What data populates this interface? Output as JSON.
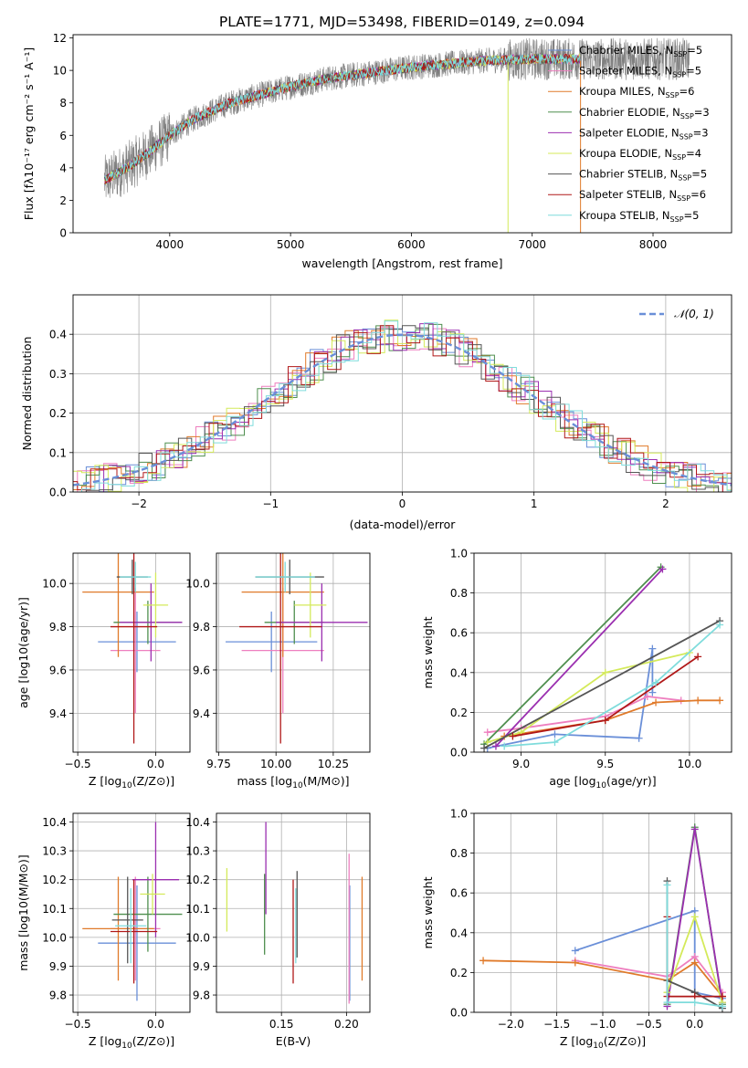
{
  "figure": {
    "title": "PLATE=1771, MJD=53498, FIBERID=0149, z=0.094"
  },
  "chart_data": [
    {
      "id": "spectrum",
      "type": "line",
      "xlabel": "wavelength [Angstrom, rest frame]",
      "ylabel": "Flux [fλ10⁻¹⁷ erg cm⁻² s⁻¹ A⁻¹]",
      "xlim": [
        3200,
        8650
      ],
      "ylim": [
        0,
        12.2
      ],
      "xticks": [
        4000,
        5000,
        6000,
        7000,
        8000
      ],
      "yticks": [
        0,
        2,
        4,
        6,
        8,
        10,
        12
      ],
      "grid": false,
      "legend_position": "top-right",
      "continuum": {
        "x": [
          3460,
          3600,
          3800,
          4000,
          4200,
          4500,
          4800,
          5000,
          5300,
          5600,
          6000,
          6300,
          6600,
          7000,
          7400
        ],
        "y": [
          3.2,
          3.8,
          4.8,
          6.0,
          7.0,
          8.0,
          8.6,
          9.0,
          9.5,
          9.8,
          10.2,
          10.4,
          10.6,
          10.7,
          10.7
        ]
      },
      "series": [
        {
          "name": "Chabrier MILES, N_SSP=5",
          "label_main": "Chabrier MILES, N",
          "label_sub": "SSP",
          "label_tail": "=5",
          "color": "#6a8fd8"
        },
        {
          "name": "Salpeter MILES, N_SSP=5",
          "label_main": "Salpeter MILES, N",
          "label_sub": "SSP",
          "label_tail": "=5",
          "color": "#ee7fbf"
        },
        {
          "name": "Kroupa MILES, N_SSP=6",
          "label_main": "Kroupa MILES, N",
          "label_sub": "SSP",
          "label_tail": "=6",
          "color": "#e07a2a"
        },
        {
          "name": "Chabrier ELODIE, N_SSP=3",
          "label_main": "Chabrier ELODIE, N",
          "label_sub": "SSP",
          "label_tail": "=3",
          "color": "#4f8f4f"
        },
        {
          "name": "Salpeter ELODIE, N_SSP=3",
          "label_main": "Salpeter ELODIE, N",
          "label_sub": "SSP",
          "label_tail": "=3",
          "color": "#9b2fb0"
        },
        {
          "name": "Kroupa ELODIE, N_SSP=4",
          "label_main": "Kroupa ELODIE, N",
          "label_sub": "SSP",
          "label_tail": "=4",
          "color": "#d4ea5a"
        },
        {
          "name": "Chabrier STELIB, N_SSP=5",
          "label_main": "Chabrier STELIB, N",
          "label_sub": "SSP",
          "label_tail": "=5",
          "color": "#555555"
        },
        {
          "name": "Salpeter STELIB, N_SSP=6",
          "label_main": "Salpeter STELIB, N",
          "label_sub": "SSP",
          "label_tail": "=6",
          "color": "#b01818"
        },
        {
          "name": "Kroupa STELIB, N_SSP=5",
          "label_main": "Kroupa STELIB, N",
          "label_sub": "SSP",
          "label_tail": "=5",
          "color": "#7fdcdc"
        }
      ]
    },
    {
      "id": "residuals",
      "type": "histogram",
      "xlabel": "(data-model)/error",
      "ylabel": "Normed distribution",
      "xlim": [
        -2.5,
        2.5
      ],
      "ylim": [
        0,
        0.5
      ],
      "xticks": [
        -2,
        -1,
        0,
        1,
        2
      ],
      "xtick_labels": [
        "−2",
        "−1",
        "0",
        "1",
        "2"
      ],
      "yticks": [
        0,
        0.1,
        0.2,
        0.3,
        0.4
      ],
      "ytick_labels": [
        "0.0",
        "0.1",
        "0.2",
        "0.3",
        "0.4"
      ],
      "grid": true,
      "legend_position": "top-right",
      "legend_label": "𝒩(0, 1)",
      "gaussian": {
        "mu": 0,
        "sigma": 1,
        "color": "#6a8fd8"
      }
    },
    {
      "id": "age_vs_Z",
      "type": "errorbar",
      "xlabel_main": "Z [log",
      "xlabel_sub": "10",
      "xlabel_tail": "(Z/Z⊙)]",
      "ylabel": "age  [log10(age/yr)]",
      "xlim": [
        -0.53,
        0.22
      ],
      "ylim": [
        9.22,
        10.14
      ],
      "xticks": [
        -0.5,
        0.0
      ],
      "xtick_labels": [
        "−0.5",
        "0.0"
      ],
      "yticks": [
        9.4,
        9.6,
        9.8,
        10.0
      ],
      "ytick_labels": [
        "9.4",
        "9.6",
        "9.8",
        "10.0"
      ],
      "grid": true,
      "points": [
        {
          "x": -0.12,
          "xerr": 0.25,
          "y": 9.73,
          "yerr": 0.14,
          "color": "#6a8fd8"
        },
        {
          "x": -0.13,
          "xerr": 0.16,
          "y": 9.69,
          "yerr": 0.29,
          "color": "#ee7fbf"
        },
        {
          "x": -0.24,
          "xerr": 0.23,
          "y": 9.96,
          "yerr": 0.3,
          "color": "#e07a2a"
        },
        {
          "x": -0.05,
          "xerr": 0.22,
          "y": 9.82,
          "yerr": 0.1,
          "color": "#4f8f4f"
        },
        {
          "x": -0.03,
          "xerr": 0.2,
          "y": 9.82,
          "yerr": 0.18,
          "color": "#9b2fb0"
        },
        {
          "x": 0.0,
          "xerr": 0.08,
          "y": 9.9,
          "yerr": 0.15,
          "color": "#d4ea5a"
        },
        {
          "x": -0.15,
          "xerr": 0.1,
          "y": 10.03,
          "yerr": 0.08,
          "color": "#555555"
        },
        {
          "x": -0.14,
          "xerr": 0.15,
          "y": 9.8,
          "yerr": 0.54,
          "color": "#b01818"
        },
        {
          "x": -0.13,
          "xerr": 0.1,
          "y": 10.03,
          "yerr": 0.07,
          "color": "#7fdcdc"
        }
      ]
    },
    {
      "id": "age_vs_mass",
      "type": "errorbar",
      "xlabel_main": "mass [log",
      "xlabel_sub": "10",
      "xlabel_tail": "(M/M⊙)]",
      "ylabel": "",
      "xlim": [
        9.74,
        10.41
      ],
      "ylim": [
        9.22,
        10.14
      ],
      "xticks": [
        9.75,
        10.0,
        10.25
      ],
      "xtick_labels": [
        "9.75",
        "10.00",
        "10.25"
      ],
      "yticks": [
        9.4,
        9.6,
        9.8,
        10.0
      ],
      "ytick_labels": [
        "9.4",
        "9.6",
        "9.8",
        "10.0"
      ],
      "grid": true,
      "points": [
        {
          "x": 9.98,
          "xerr": 0.2,
          "y": 9.73,
          "yerr": 0.14,
          "color": "#6a8fd8"
        },
        {
          "x": 10.03,
          "xerr": 0.18,
          "y": 9.69,
          "yerr": 0.29,
          "color": "#ee7fbf"
        },
        {
          "x": 10.03,
          "xerr": 0.18,
          "y": 9.96,
          "yerr": 0.3,
          "color": "#e07a2a"
        },
        {
          "x": 10.08,
          "xerr": 0.13,
          "y": 9.82,
          "yerr": 0.1,
          "color": "#4f8f4f"
        },
        {
          "x": 10.2,
          "xerr": 0.2,
          "y": 9.82,
          "yerr": 0.18,
          "color": "#9b2fb0"
        },
        {
          "x": 10.15,
          "xerr": 0.07,
          "y": 9.9,
          "yerr": 0.15,
          "color": "#d4ea5a"
        },
        {
          "x": 10.06,
          "xerr": 0.15,
          "y": 10.03,
          "yerr": 0.08,
          "color": "#555555"
        },
        {
          "x": 10.02,
          "xerr": 0.18,
          "y": 9.8,
          "yerr": 0.54,
          "color": "#b01818"
        },
        {
          "x": 10.04,
          "xerr": 0.13,
          "y": 10.03,
          "yerr": 0.07,
          "color": "#7fdcdc"
        }
      ]
    },
    {
      "id": "weight_vs_age",
      "type": "line",
      "xlabel_main": "age  [log",
      "xlabel_sub": "10",
      "xlabel_tail": "(age/yr)]",
      "ylabel": "mass weight",
      "xlim": [
        8.72,
        10.25
      ],
      "ylim": [
        0,
        1.0
      ],
      "xticks": [
        9.0,
        9.5,
        10.0
      ],
      "xtick_labels": [
        "9.0",
        "9.5",
        "10.0"
      ],
      "yticks": [
        0,
        0.2,
        0.4,
        0.6,
        0.8,
        1.0
      ],
      "ytick_labels": [
        "0.0",
        "0.2",
        "0.4",
        "0.6",
        "0.8",
        "1.0"
      ],
      "grid": true,
      "series": [
        {
          "color": "#6a8fd8",
          "x": [
            8.8,
            9.2,
            9.7,
            9.78,
            9.78
          ],
          "y": [
            0.02,
            0.09,
            0.07,
            0.52,
            0.3
          ]
        },
        {
          "color": "#ee7fbf",
          "x": [
            8.8,
            9.0,
            9.5,
            9.75,
            9.95
          ],
          "y": [
            0.1,
            0.12,
            0.18,
            0.28,
            0.26
          ]
        },
        {
          "color": "#e07a2a",
          "x": [
            8.9,
            9.5,
            9.8,
            10.05,
            10.18
          ],
          "y": [
            0.08,
            0.16,
            0.25,
            0.26,
            0.26
          ]
        },
        {
          "color": "#4f8f4f",
          "x": [
            8.78,
            9.83
          ],
          "y": [
            0.04,
            0.93
          ]
        },
        {
          "color": "#9b2fb0",
          "x": [
            8.85,
            9.84
          ],
          "y": [
            0.03,
            0.92
          ]
        },
        {
          "color": "#d4ea5a",
          "x": [
            8.8,
            9.0,
            9.5,
            10.0
          ],
          "y": [
            0.05,
            0.1,
            0.4,
            0.5
          ]
        },
        {
          "color": "#555555",
          "x": [
            8.78,
            10.18
          ],
          "y": [
            0.02,
            0.66
          ]
        },
        {
          "color": "#b01818",
          "x": [
            8.95,
            9.5,
            10.05
          ],
          "y": [
            0.08,
            0.16,
            0.48
          ]
        },
        {
          "color": "#7fdcdc",
          "x": [
            8.9,
            9.2,
            9.8,
            10.18
          ],
          "y": [
            0.03,
            0.05,
            0.35,
            0.64
          ]
        }
      ]
    },
    {
      "id": "mass_vs_Z",
      "type": "errorbar",
      "xlabel_main": "Z [log",
      "xlabel_sub": "10",
      "xlabel_tail": "(Z/Z⊙)]",
      "ylabel": "mass [log10(M/M⊙)]",
      "xlim": [
        -0.53,
        0.22
      ],
      "ylim": [
        9.74,
        10.43
      ],
      "xticks": [
        -0.5,
        0.0
      ],
      "xtick_labels": [
        "−0.5",
        "0.0"
      ],
      "yticks": [
        9.8,
        9.9,
        10.0,
        10.1,
        10.2,
        10.3,
        10.4
      ],
      "ytick_labels": [
        "9.8",
        "9.9",
        "10.0",
        "10.1",
        "10.2",
        "10.3",
        "10.4"
      ],
      "grid": true,
      "points": [
        {
          "x": -0.12,
          "xerr": 0.25,
          "y": 9.98,
          "yerr": 0.2,
          "color": "#6a8fd8"
        },
        {
          "x": -0.13,
          "xerr": 0.16,
          "y": 10.03,
          "yerr": 0.18,
          "color": "#ee7fbf"
        },
        {
          "x": -0.24,
          "xerr": 0.23,
          "y": 10.03,
          "yerr": 0.18,
          "color": "#e07a2a"
        },
        {
          "x": -0.05,
          "xerr": 0.22,
          "y": 10.08,
          "yerr": 0.13,
          "color": "#4f8f4f"
        },
        {
          "x": 0.0,
          "xerr": 0.15,
          "y": 10.2,
          "yerr": 0.2,
          "color": "#9b2fb0"
        },
        {
          "x": -0.02,
          "xerr": 0.08,
          "y": 10.15,
          "yerr": 0.07,
          "color": "#d4ea5a"
        },
        {
          "x": -0.18,
          "xerr": 0.1,
          "y": 10.06,
          "yerr": 0.15,
          "color": "#555555"
        },
        {
          "x": -0.14,
          "xerr": 0.15,
          "y": 10.02,
          "yerr": 0.18,
          "color": "#b01818"
        },
        {
          "x": -0.16,
          "xerr": 0.1,
          "y": 10.04,
          "yerr": 0.13,
          "color": "#7fdcdc"
        }
      ]
    },
    {
      "id": "mass_vs_ebv",
      "type": "errorbar",
      "xlabel_main": "E(B-V)",
      "xlabel_sub": "",
      "xlabel_tail": "",
      "ylabel": "",
      "xlim": [
        0.1,
        0.218
      ],
      "ylim": [
        9.74,
        10.43
      ],
      "xticks": [
        0.15,
        0.2
      ],
      "xtick_labels": [
        "0.15",
        "0.20"
      ],
      "yticks": [
        9.8,
        9.9,
        10.0,
        10.1,
        10.2,
        10.3,
        10.4
      ],
      "ytick_labels": [
        "9.8",
        "9.9",
        "10.0",
        "10.1",
        "10.2",
        "10.3",
        "10.4"
      ],
      "grid": true,
      "points": [
        {
          "x": 0.2025,
          "xerr": 0,
          "y": 9.98,
          "yerr": 0.2,
          "color": "#6a8fd8"
        },
        {
          "x": 0.202,
          "xerr": 0,
          "y": 10.03,
          "yerr": 0.26,
          "color": "#ee7fbf"
        },
        {
          "x": 0.212,
          "xerr": 0,
          "y": 10.03,
          "yerr": 0.18,
          "color": "#e07a2a"
        },
        {
          "x": 0.137,
          "xerr": 0,
          "y": 10.08,
          "yerr": 0.14,
          "color": "#4f8f4f"
        },
        {
          "x": 0.138,
          "xerr": 0,
          "y": 10.24,
          "yerr": 0.16,
          "color": "#9b2fb0"
        },
        {
          "x": 0.108,
          "xerr": 0,
          "y": 10.13,
          "yerr": 0.11,
          "color": "#d4ea5a"
        },
        {
          "x": 0.162,
          "xerr": 0,
          "y": 10.08,
          "yerr": 0.15,
          "color": "#555555"
        },
        {
          "x": 0.159,
          "xerr": 0,
          "y": 10.02,
          "yerr": 0.18,
          "color": "#b01818"
        },
        {
          "x": 0.161,
          "xerr": 0,
          "y": 10.04,
          "yerr": 0.13,
          "color": "#7fdcdc"
        }
      ]
    },
    {
      "id": "weight_vs_Z",
      "type": "line",
      "xlabel_main": "Z [log",
      "xlabel_sub": "10",
      "xlabel_tail": "(Z/Z⊙)]",
      "ylabel": "mass weight",
      "xlim": [
        -2.4,
        0.4
      ],
      "ylim": [
        0,
        1.0
      ],
      "xticks": [
        -2.0,
        -1.5,
        -1.0,
        -0.5,
        0.0
      ],
      "xtick_labels": [
        "−2.0",
        "−1.5",
        "−1.0",
        "−0.5",
        "0.0"
      ],
      "yticks": [
        0,
        0.2,
        0.4,
        0.6,
        0.8,
        1.0
      ],
      "ytick_labels": [
        "0.0",
        "0.2",
        "0.4",
        "0.6",
        "0.8",
        "1.0"
      ],
      "grid": true,
      "series": [
        {
          "color": "#6a8fd8",
          "x": [
            -1.3,
            0.0,
            0.0,
            0.3
          ],
          "y": [
            0.31,
            0.51,
            0.1,
            0.07
          ]
        },
        {
          "color": "#ee7fbf",
          "x": [
            -1.3,
            -0.3,
            0.0,
            0.3
          ],
          "y": [
            0.26,
            0.18,
            0.28,
            0.1
          ]
        },
        {
          "color": "#e07a2a",
          "x": [
            -2.3,
            -1.3,
            -0.3,
            0.0,
            0.3
          ],
          "y": [
            0.26,
            0.25,
            0.16,
            0.25,
            0.08
          ]
        },
        {
          "color": "#4f8f4f",
          "x": [
            -0.3,
            0.0,
            0.3
          ],
          "y": [
            0.04,
            0.93,
            0.04
          ]
        },
        {
          "color": "#9b2fb0",
          "x": [
            -0.3,
            0.0,
            0.3
          ],
          "y": [
            0.03,
            0.92,
            0.05
          ]
        },
        {
          "color": "#d4ea5a",
          "x": [
            -0.3,
            0.0,
            0.3
          ],
          "y": [
            0.1,
            0.48,
            0.05
          ]
        },
        {
          "color": "#555555",
          "x": [
            -0.3,
            -0.3,
            0.0,
            0.3
          ],
          "y": [
            0.66,
            0.16,
            0.1,
            0.02
          ]
        },
        {
          "color": "#b01818",
          "x": [
            -0.3,
            -0.3,
            0.0,
            0.3
          ],
          "y": [
            0.48,
            0.08,
            0.08,
            0.08
          ]
        },
        {
          "color": "#7fdcdc",
          "x": [
            -0.3,
            -0.3,
            0.0,
            0.3
          ],
          "y": [
            0.64,
            0.05,
            0.05,
            0.03
          ]
        }
      ]
    }
  ]
}
